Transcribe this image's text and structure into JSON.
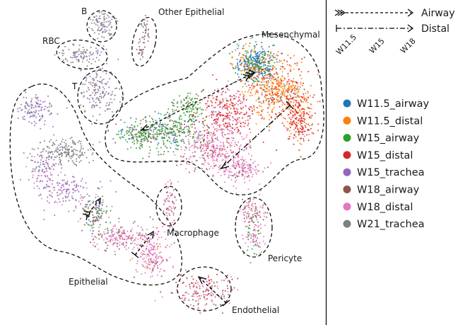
{
  "chart_data": {
    "type": "scatter",
    "title": "",
    "xlabel": "",
    "ylabel": "",
    "grid": false,
    "legend_position": "right",
    "series": [
      {
        "name": "W11.5_airway",
        "color": "#1f77b4"
      },
      {
        "name": "W11.5_distal",
        "color": "#ff7f0e"
      },
      {
        "name": "W15_airway",
        "color": "#2ca02c"
      },
      {
        "name": "W15_distal",
        "color": "#d62728"
      },
      {
        "name": "W15_trachea",
        "color": "#9467bd"
      },
      {
        "name": "W18_airway",
        "color": "#8c564b"
      },
      {
        "name": "W18_distal",
        "color": "#e377c2"
      },
      {
        "name": "W21_trachea",
        "color": "#7f7f7f"
      }
    ],
    "cluster_labels": [
      "B",
      "Other Epithelial",
      "RBC",
      "Mesenchymal",
      "T",
      "Macrophage",
      "Pericyte",
      "Epithelial",
      "Endothelial"
    ],
    "trajectory_key": {
      "airway_label": "Airway",
      "distal_label": "Distal",
      "ticks": [
        "W11.5",
        "W15",
        "W18"
      ]
    }
  }
}
